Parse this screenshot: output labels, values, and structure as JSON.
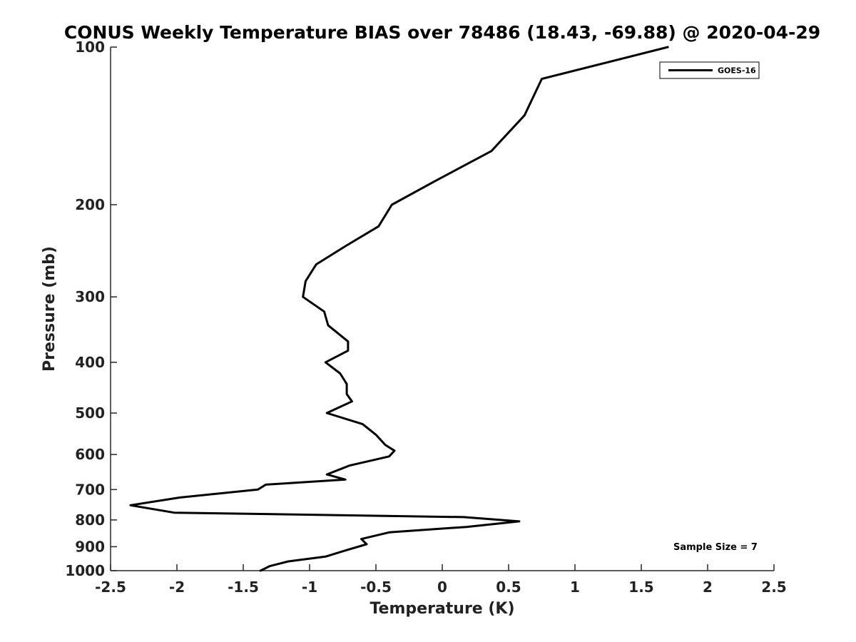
{
  "chart_data": {
    "type": "line",
    "title": "CONUS Weekly Temperature BIAS over 78486 (18.43, -69.88) @ 2020-04-29",
    "xlabel": "Temperature (K)",
    "ylabel": "Pressure (mb)",
    "xlim": [
      -2.5,
      2.5
    ],
    "ylim": [
      1000,
      100
    ],
    "y_scale": "log",
    "y_reversed": true,
    "grid": false,
    "x_ticks": [
      -2.5,
      -2,
      -1.5,
      -1,
      -0.5,
      0,
      0.5,
      1,
      1.5,
      2,
      2.5
    ],
    "x_tick_labels": [
      "-2.5",
      "-2",
      "-1.5",
      "-1",
      "-0.5",
      "0",
      "0.5",
      "1",
      "1.5",
      "2",
      "2.5"
    ],
    "y_ticks": [
      100,
      200,
      300,
      400,
      500,
      600,
      700,
      800,
      900,
      1000
    ],
    "y_tick_labels": [
      "100",
      "200",
      "300",
      "400",
      "500",
      "600",
      "700",
      "800",
      "900",
      "1000"
    ],
    "legend_position": "top-right",
    "annotation": "Sample Size = 7",
    "series": [
      {
        "name": "GOES-16",
        "color": "#000000",
        "x": [
          1.7,
          0.75,
          0.62,
          0.37,
          -0.05,
          -0.38,
          -0.48,
          -0.73,
          -0.95,
          -1.03,
          -1.05,
          -0.89,
          -0.86,
          -0.71,
          -0.71,
          -0.88,
          -0.77,
          -0.72,
          -0.72,
          -0.68,
          -0.87,
          -0.6,
          -0.5,
          -0.43,
          -0.36,
          -0.4,
          -0.7,
          -0.87,
          -0.73,
          -1.33,
          -1.39,
          -1.98,
          -2.35,
          -2.02,
          0.16,
          0.58,
          0.18,
          -0.4,
          -0.61,
          -0.57,
          -0.73,
          -0.88,
          -1.16,
          -1.3,
          -1.37
        ],
        "y": [
          100,
          115,
          135,
          158,
          180,
          200,
          220,
          240,
          260,
          280,
          300,
          320,
          340,
          365,
          380,
          400,
          420,
          440,
          460,
          475,
          500,
          525,
          550,
          575,
          590,
          605,
          630,
          655,
          670,
          685,
          700,
          725,
          750,
          775,
          790,
          805,
          825,
          845,
          870,
          890,
          915,
          940,
          960,
          980,
          1000
        ]
      }
    ]
  }
}
